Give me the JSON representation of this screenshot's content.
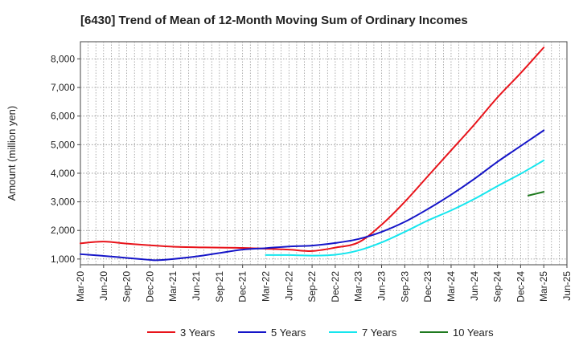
{
  "chart_data": {
    "type": "line",
    "title": "[6430]  Trend of Mean of 12-Month Moving Sum of Ordinary Incomes",
    "xlabel": "",
    "ylabel": "Amount (million yen)",
    "ylim": [
      800,
      8600
    ],
    "yticks": [
      1000,
      2000,
      3000,
      4000,
      5000,
      6000,
      7000,
      8000
    ],
    "ytick_labels": [
      "1,000",
      "2,000",
      "3,000",
      "4,000",
      "5,000",
      "6,000",
      "7,000",
      "8,000"
    ],
    "x_start": "Mar-20",
    "x_months": 63,
    "xtick_labels": [
      "Mar-20",
      "Jun-20",
      "Sep-20",
      "Dec-20",
      "Mar-21",
      "Jun-21",
      "Sep-21",
      "Dec-21",
      "Mar-22",
      "Jun-22",
      "Sep-22",
      "Dec-22",
      "Mar-23",
      "Jun-23",
      "Sep-23",
      "Dec-23",
      "Mar-24",
      "Jun-24",
      "Sep-24",
      "Dec-24",
      "Mar-25",
      "Jun-25"
    ],
    "grid": true,
    "legend_position": "bottom",
    "series": [
      {
        "name": "3 Years",
        "color": "#e8141b",
        "x": [
          0,
          3,
          6,
          9,
          12,
          15,
          18,
          21,
          24,
          27,
          30,
          33,
          36,
          39,
          42,
          45,
          48,
          51,
          54,
          57,
          60
        ],
        "values": [
          1550,
          1610,
          1540,
          1480,
          1430,
          1410,
          1400,
          1390,
          1360,
          1330,
          1280,
          1400,
          1580,
          2200,
          3000,
          3900,
          4800,
          5700,
          6650,
          7500,
          8400
        ]
      },
      {
        "name": "5 Years",
        "color": "#1515c8",
        "x": [
          0,
          3,
          6,
          9,
          10,
          12,
          15,
          18,
          21,
          24,
          27,
          30,
          33,
          36,
          39,
          42,
          45,
          48,
          51,
          54,
          57,
          60
        ],
        "values": [
          1170,
          1110,
          1040,
          970,
          960,
          1000,
          1090,
          1210,
          1330,
          1380,
          1440,
          1470,
          1560,
          1700,
          1950,
          2300,
          2750,
          3250,
          3800,
          4400,
          4950,
          5500
        ]
      },
      {
        "name": "7 Years",
        "color": "#16e6ee",
        "x": [
          24,
          27,
          30,
          33,
          36,
          39,
          42,
          45,
          48,
          51,
          54,
          57,
          60
        ],
        "values": [
          1140,
          1140,
          1120,
          1150,
          1300,
          1580,
          1950,
          2350,
          2700,
          3100,
          3550,
          3980,
          4450
        ]
      },
      {
        "name": "10 Years",
        "color": "#1f7a1f",
        "x": [
          58,
          60
        ],
        "values": [
          3220,
          3350
        ]
      }
    ]
  }
}
